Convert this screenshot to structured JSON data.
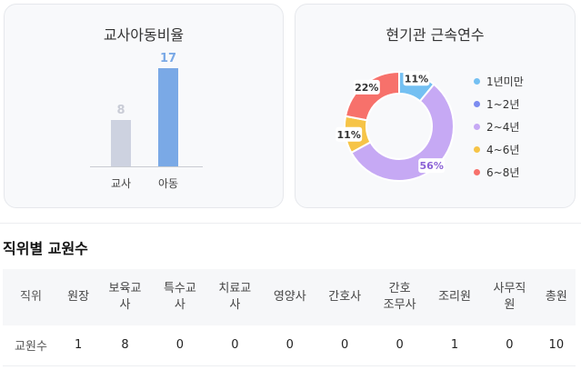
{
  "ratio_card": {
    "title": "교사아동비율",
    "chart_data": {
      "type": "bar",
      "categories": [
        "교사",
        "아동"
      ],
      "values": [
        8,
        17
      ],
      "value_labels": [
        "8",
        "17"
      ],
      "colors": [
        "#cdd2e0",
        "#7aa9e6"
      ],
      "label_colors": [
        "#c9ccd6",
        "#7aa9e6"
      ]
    }
  },
  "tenure_card": {
    "title": "현기관 근속연수",
    "chart_data": {
      "type": "pie",
      "categories": [
        "1년미만",
        "1~2년",
        "2~4년",
        "4~6년",
        "6~8년"
      ],
      "values": [
        11,
        0,
        56,
        11,
        22
      ],
      "slice_labels": [
        "11%",
        "",
        "56%",
        "11%",
        "22%"
      ],
      "colors": [
        "#74c0f2",
        "#7c8cf0",
        "#c6a9f4",
        "#f6c447",
        "#f7716b"
      ],
      "label_colors": [
        "#333333",
        "#333333",
        "#8b62d6",
        "#333333",
        "#333333"
      ]
    }
  },
  "staff_section": {
    "title": "직위별 교원수",
    "headers": [
      "직위",
      "원장",
      "보육교사",
      "특수교사",
      "치료교사",
      "영양사",
      "간호사",
      "간호조무사",
      "조리원",
      "사무직원",
      "총원"
    ],
    "row_label": "교원수",
    "values": [
      "1",
      "8",
      "0",
      "0",
      "0",
      "0",
      "0",
      "1",
      "0",
      "10"
    ]
  }
}
